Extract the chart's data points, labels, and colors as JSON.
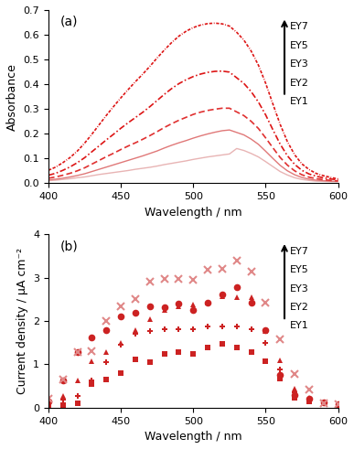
{
  "wavelength_abs": [
    400,
    405,
    410,
    415,
    420,
    425,
    430,
    435,
    440,
    445,
    450,
    455,
    460,
    465,
    470,
    475,
    480,
    485,
    490,
    495,
    500,
    505,
    510,
    515,
    520,
    525,
    530,
    535,
    540,
    545,
    550,
    555,
    560,
    565,
    570,
    575,
    580,
    585,
    590,
    595,
    600
  ],
  "abs_EY1": [
    0.01,
    0.012,
    0.015,
    0.018,
    0.022,
    0.025,
    0.03,
    0.035,
    0.039,
    0.043,
    0.047,
    0.051,
    0.056,
    0.06,
    0.064,
    0.069,
    0.075,
    0.08,
    0.085,
    0.09,
    0.096,
    0.101,
    0.106,
    0.11,
    0.114,
    0.118,
    0.14,
    0.132,
    0.12,
    0.106,
    0.087,
    0.067,
    0.047,
    0.033,
    0.022,
    0.015,
    0.011,
    0.008,
    0.007,
    0.006,
    0.005
  ],
  "abs_EY2": [
    0.013,
    0.016,
    0.02,
    0.025,
    0.031,
    0.038,
    0.047,
    0.056,
    0.065,
    0.074,
    0.083,
    0.092,
    0.101,
    0.11,
    0.12,
    0.13,
    0.142,
    0.153,
    0.163,
    0.172,
    0.182,
    0.191,
    0.199,
    0.206,
    0.212,
    0.215,
    0.205,
    0.195,
    0.178,
    0.157,
    0.129,
    0.1,
    0.072,
    0.05,
    0.034,
    0.023,
    0.016,
    0.012,
    0.01,
    0.008,
    0.007
  ],
  "abs_EY3": [
    0.02,
    0.025,
    0.032,
    0.04,
    0.05,
    0.062,
    0.077,
    0.092,
    0.107,
    0.121,
    0.136,
    0.15,
    0.163,
    0.177,
    0.192,
    0.208,
    0.225,
    0.24,
    0.254,
    0.266,
    0.278,
    0.287,
    0.294,
    0.299,
    0.303,
    0.303,
    0.288,
    0.273,
    0.25,
    0.221,
    0.183,
    0.143,
    0.104,
    0.073,
    0.05,
    0.034,
    0.024,
    0.018,
    0.014,
    0.011,
    0.009
  ],
  "abs_EY5": [
    0.032,
    0.04,
    0.052,
    0.066,
    0.083,
    0.103,
    0.127,
    0.151,
    0.175,
    0.198,
    0.222,
    0.244,
    0.265,
    0.286,
    0.309,
    0.334,
    0.359,
    0.382,
    0.402,
    0.418,
    0.431,
    0.441,
    0.448,
    0.452,
    0.453,
    0.449,
    0.426,
    0.403,
    0.37,
    0.328,
    0.276,
    0.216,
    0.158,
    0.111,
    0.076,
    0.052,
    0.037,
    0.028,
    0.021,
    0.017,
    0.013
  ],
  "abs_EY7": [
    0.052,
    0.065,
    0.083,
    0.104,
    0.13,
    0.162,
    0.198,
    0.236,
    0.274,
    0.31,
    0.345,
    0.378,
    0.41,
    0.44,
    0.472,
    0.506,
    0.538,
    0.568,
    0.594,
    0.614,
    0.629,
    0.639,
    0.645,
    0.647,
    0.644,
    0.635,
    0.61,
    0.578,
    0.534,
    0.477,
    0.404,
    0.32,
    0.238,
    0.168,
    0.115,
    0.078,
    0.055,
    0.039,
    0.03,
    0.023,
    0.017
  ],
  "wavelength_pc": [
    400,
    410,
    420,
    430,
    440,
    450,
    460,
    470,
    480,
    490,
    500,
    510,
    520,
    530,
    540,
    550,
    560,
    570,
    580,
    590,
    600
  ],
  "pc_EY1": [
    0.05,
    0.06,
    0.1,
    0.55,
    0.65,
    0.8,
    1.12,
    1.05,
    1.25,
    1.28,
    1.25,
    1.38,
    1.48,
    1.4,
    1.28,
    1.08,
    0.68,
    0.22,
    0.14,
    0.1,
    0.04
  ],
  "pc_EY2": [
    0.08,
    0.18,
    0.28,
    0.62,
    1.05,
    1.45,
    1.7,
    1.78,
    1.82,
    1.82,
    1.82,
    1.88,
    1.88,
    1.88,
    1.82,
    1.5,
    0.88,
    0.35,
    0.18,
    0.12,
    0.07
  ],
  "pc_EY3": [
    0.1,
    0.28,
    0.62,
    1.08,
    1.28,
    1.5,
    1.8,
    2.05,
    2.25,
    2.35,
    2.38,
    2.42,
    2.58,
    2.55,
    2.55,
    1.78,
    1.1,
    0.44,
    0.22,
    0.13,
    0.07
  ],
  "pc_EY5": [
    0.15,
    0.62,
    1.28,
    1.62,
    1.8,
    2.1,
    2.2,
    2.35,
    2.32,
    2.4,
    2.25,
    2.42,
    2.62,
    2.78,
    2.42,
    1.8,
    0.75,
    0.3,
    0.2,
    0.13,
    0.07
  ],
  "pc_EY7": [
    0.2,
    0.65,
    1.28,
    1.3,
    2.0,
    2.35,
    2.5,
    2.92,
    2.98,
    2.98,
    2.95,
    3.18,
    3.2,
    3.4,
    3.15,
    2.42,
    1.58,
    0.78,
    0.42,
    0.1,
    0.07
  ],
  "abs_ylim": [
    0,
    0.7
  ],
  "abs_yticks": [
    0.0,
    0.1,
    0.2,
    0.3,
    0.4,
    0.5,
    0.6,
    0.7
  ],
  "pc_ylim": [
    0,
    4
  ],
  "pc_yticks": [
    0,
    1,
    2,
    3,
    4
  ],
  "xlim": [
    400,
    600
  ],
  "xticks": [
    400,
    450,
    500,
    550,
    600
  ],
  "color_EY1_abs": "#e8b4b4",
  "color_EY2_abs": "#e07878",
  "color_EY3_abs": "#e03030",
  "color_EY5_abs": "#dd1515",
  "color_EY7_abs": "#dd1515",
  "color_EY1_pc": "#cc2222",
  "color_EY2_pc": "#cc2222",
  "color_EY3_pc": "#cc2222",
  "color_EY5_pc": "#cc2222",
  "color_EY7_pc": "#e08888",
  "xlabel": "Wavelength / nm",
  "ylabel_a": "Absorbance",
  "ylabel_b": "Current density / μA cm⁻²",
  "panel_a_label": "(a)",
  "panel_b_label": "(b)",
  "legend_labels": [
    "EY7",
    "EY5",
    "EY3",
    "EY2",
    "EY1"
  ],
  "background_color": "#ffffff"
}
